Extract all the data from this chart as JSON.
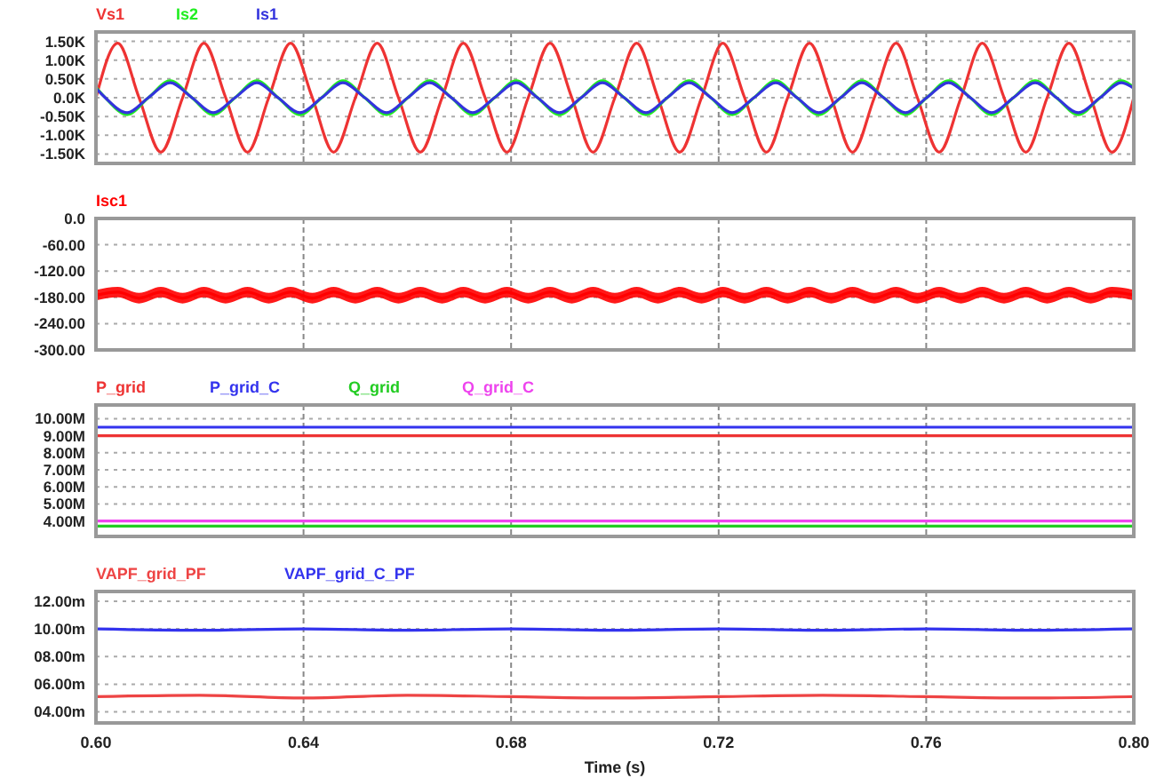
{
  "chart_data": [
    {
      "type": "line",
      "legend": "top",
      "grid": true,
      "tick_labels": "y",
      "xlim": [
        0.6,
        0.8
      ],
      "xticks": [
        {
          "value": 0.6,
          "label": null
        },
        {
          "value": 0.64,
          "label": null
        },
        {
          "value": 0.68,
          "label": null
        },
        {
          "value": 0.72,
          "label": null
        },
        {
          "value": 0.76,
          "label": null
        },
        {
          "value": 0.8,
          "label": null
        }
      ],
      "ylim": [
        -1750,
        1750
      ],
      "yticks": [
        {
          "value": 1500,
          "label": "1.50K"
        },
        {
          "value": 1000,
          "label": "1.00K"
        },
        {
          "value": 500,
          "label": "0.50K"
        },
        {
          "value": 0,
          "label": "0.0K"
        },
        {
          "value": -500,
          "label": "-0.50K"
        },
        {
          "value": -1000,
          "label": "-1.00K"
        },
        {
          "value": -1500,
          "label": "-1.50K"
        }
      ],
      "series": [
        {
          "name": "Vs1",
          "color": "#ee3333",
          "x": [
            0.6,
            0.6042,
            0.6083,
            0.6125,
            0.6167,
            0.6208,
            0.625,
            0.6292,
            0.6333,
            0.6375,
            0.6417,
            0.6458,
            0.65,
            0.6542,
            0.6583,
            0.6625,
            0.6667,
            0.6708,
            0.675,
            0.6792,
            0.6833,
            0.6875,
            0.6917,
            0.6958,
            0.7,
            0.7042,
            0.7083,
            0.7125,
            0.7167,
            0.7208,
            0.725,
            0.7292,
            0.7333,
            0.7375,
            0.7417,
            0.7458,
            0.75,
            0.7542,
            0.7583,
            0.7625,
            0.7667,
            0.7708,
            0.775,
            0.7792,
            0.7833,
            0.7875,
            0.7917,
            0.7958,
            0.8
          ],
          "values": [
            0,
            1450,
            0,
            -1450,
            0,
            1450,
            0,
            -1450,
            0,
            1450,
            0,
            -1450,
            0,
            1450,
            0,
            -1450,
            0,
            1450,
            0,
            -1450,
            0,
            1450,
            0,
            -1450,
            0,
            1450,
            0,
            -1450,
            0,
            1450,
            0,
            -1450,
            0,
            1450,
            0,
            -1450,
            0,
            1450,
            0,
            -1450,
            0,
            1450,
            0,
            -1450,
            0,
            1450,
            0,
            -1450,
            0
          ]
        },
        {
          "name": "Is2",
          "color": "#22ee22",
          "x": [
            0.6,
            0.6018,
            0.606,
            0.6101,
            0.6143,
            0.6185,
            0.6226,
            0.6268,
            0.631,
            0.6351,
            0.6393,
            0.6435,
            0.6476,
            0.6518,
            0.656,
            0.6601,
            0.6643,
            0.6685,
            0.6726,
            0.6768,
            0.681,
            0.6851,
            0.6893,
            0.6935,
            0.6976,
            0.7018,
            0.706,
            0.7101,
            0.7143,
            0.7185,
            0.7226,
            0.7268,
            0.731,
            0.7351,
            0.7393,
            0.7435,
            0.7476,
            0.7518,
            0.756,
            0.7601,
            0.7643,
            0.7685,
            0.7726,
            0.7768,
            0.781,
            0.7851,
            0.7893,
            0.7935,
            0.7976,
            0.8
          ],
          "values": [
            280,
            0,
            -450,
            0,
            450,
            0,
            -450,
            0,
            450,
            0,
            -450,
            0,
            450,
            0,
            -450,
            0,
            450,
            0,
            -450,
            0,
            450,
            0,
            -450,
            0,
            450,
            0,
            -450,
            0,
            450,
            0,
            -450,
            0,
            450,
            0,
            -450,
            0,
            450,
            0,
            -450,
            0,
            450,
            0,
            -450,
            0,
            450,
            0,
            -450,
            0,
            450,
            280
          ]
        },
        {
          "name": "Is1",
          "color": "#3333dd",
          "x": [
            0.6,
            0.6018,
            0.606,
            0.6101,
            0.6143,
            0.6185,
            0.6226,
            0.6268,
            0.631,
            0.6351,
            0.6393,
            0.6435,
            0.6476,
            0.6518,
            0.656,
            0.6601,
            0.6643,
            0.6685,
            0.6726,
            0.6768,
            0.681,
            0.6851,
            0.6893,
            0.6935,
            0.6976,
            0.7018,
            0.706,
            0.7101,
            0.7143,
            0.7185,
            0.7226,
            0.7268,
            0.731,
            0.7351,
            0.7393,
            0.7435,
            0.7476,
            0.7518,
            0.756,
            0.7601,
            0.7643,
            0.7685,
            0.7726,
            0.7768,
            0.781,
            0.7851,
            0.7893,
            0.7935,
            0.7976,
            0.8
          ],
          "values": [
            250,
            0,
            -400,
            0,
            400,
            0,
            -400,
            0,
            400,
            0,
            -400,
            0,
            400,
            0,
            -400,
            0,
            400,
            0,
            -400,
            0,
            400,
            0,
            -400,
            0,
            400,
            0,
            -400,
            0,
            400,
            0,
            -400,
            0,
            400,
            0,
            -400,
            0,
            400,
            0,
            -400,
            0,
            400,
            0,
            -400,
            0,
            400,
            0,
            -400,
            0,
            400,
            250
          ]
        }
      ]
    },
    {
      "type": "line",
      "legend": "top",
      "grid": true,
      "tick_labels": "y",
      "xlim": [
        0.6,
        0.8
      ],
      "xticks": [
        {
          "value": 0.6,
          "label": null
        },
        {
          "value": 0.64,
          "label": null
        },
        {
          "value": 0.68,
          "label": null
        },
        {
          "value": 0.72,
          "label": null
        },
        {
          "value": 0.76,
          "label": null
        },
        {
          "value": 0.8,
          "label": null
        }
      ],
      "ylim": [
        -300,
        0
      ],
      "yticks": [
        {
          "value": 0,
          "label": "0.0"
        },
        {
          "value": -60,
          "label": "-60.00"
        },
        {
          "value": -120,
          "label": "-120.00"
        },
        {
          "value": -180,
          "label": "-180.00"
        },
        {
          "value": -240,
          "label": "-240.00"
        },
        {
          "value": -300,
          "label": "-300.00"
        }
      ],
      "series": [
        {
          "name": "Isc1",
          "color": "#ff0000",
          "x": [
            0.6,
            0.6042,
            0.6083,
            0.6125,
            0.6167,
            0.6208,
            0.625,
            0.6292,
            0.6333,
            0.6375,
            0.6417,
            0.6458,
            0.65,
            0.6542,
            0.6583,
            0.6625,
            0.6667,
            0.6708,
            0.675,
            0.6792,
            0.6833,
            0.6875,
            0.6917,
            0.6958,
            0.7,
            0.7042,
            0.7083,
            0.7125,
            0.7167,
            0.7208,
            0.725,
            0.7292,
            0.7333,
            0.7375,
            0.7417,
            0.7458,
            0.75,
            0.7542,
            0.7583,
            0.7625,
            0.7667,
            0.7708,
            0.775,
            0.7792,
            0.7833,
            0.7875,
            0.7917,
            0.7958,
            0.8
          ],
          "values": [
            -175,
            -168,
            -182,
            -168,
            -182,
            -168,
            -182,
            -168,
            -182,
            -168,
            -182,
            -168,
            -182,
            -168,
            -182,
            -168,
            -182,
            -168,
            -182,
            -168,
            -182,
            -168,
            -182,
            -168,
            -182,
            -168,
            -182,
            -168,
            -182,
            -168,
            -182,
            -168,
            -182,
            -168,
            -182,
            -168,
            -182,
            -168,
            -182,
            -168,
            -182,
            -168,
            -182,
            -168,
            -182,
            -168,
            -182,
            -168,
            -175
          ],
          "lower": [
            -187,
            -180,
            -194,
            -180,
            -194,
            -180,
            -194,
            -180,
            -194,
            -180,
            -194,
            -180,
            -194,
            -180,
            -194,
            -180,
            -194,
            -180,
            -194,
            -180,
            -194,
            -180,
            -194,
            -180,
            -194,
            -180,
            -194,
            -180,
            -194,
            -180,
            -194,
            -180,
            -194,
            -180,
            -194,
            -180,
            -194,
            -180,
            -194,
            -180,
            -194,
            -180,
            -194,
            -180,
            -194,
            -180,
            -194,
            -180,
            -187
          ],
          "upper": [
            -163,
            -156,
            -170,
            -156,
            -170,
            -156,
            -170,
            -156,
            -170,
            -156,
            -170,
            -156,
            -170,
            -156,
            -170,
            -156,
            -170,
            -156,
            -170,
            -156,
            -170,
            -156,
            -170,
            -156,
            -170,
            -156,
            -170,
            -156,
            -170,
            -156,
            -170,
            -156,
            -170,
            -156,
            -170,
            -156,
            -170,
            -156,
            -170,
            -156,
            -170,
            -156,
            -170,
            -156,
            -170,
            -156,
            -170,
            -156,
            -163
          ]
        }
      ]
    },
    {
      "type": "line",
      "legend": "top",
      "grid": true,
      "tick_labels": "y",
      "xlim": [
        0.6,
        0.8
      ],
      "xticks": [
        {
          "value": 0.6,
          "label": null
        },
        {
          "value": 0.64,
          "label": null
        },
        {
          "value": 0.68,
          "label": null
        },
        {
          "value": 0.72,
          "label": null
        },
        {
          "value": 0.76,
          "label": null
        },
        {
          "value": 0.8,
          "label": null
        }
      ],
      "ylim": [
        3100000,
        10800000
      ],
      "yticks": [
        {
          "value": 10000000,
          "label": "10.00M"
        },
        {
          "value": 9000000,
          "label": "9.00M"
        },
        {
          "value": 8000000,
          "label": "8.00M"
        },
        {
          "value": 7000000,
          "label": "7.00M"
        },
        {
          "value": 6000000,
          "label": "6.00M"
        },
        {
          "value": 5000000,
          "label": "5.00M"
        },
        {
          "value": 4000000,
          "label": "4.00M"
        }
      ],
      "series": [
        {
          "name": "P_grid",
          "color": "#ee3333",
          "x": [
            0.6,
            0.8
          ],
          "values": [
            9000000,
            9000000
          ]
        },
        {
          "name": "P_grid_C",
          "color": "#3333ee",
          "x": [
            0.6,
            0.8
          ],
          "values": [
            9500000,
            9500000
          ]
        },
        {
          "name": "Q_grid",
          "color": "#22cc22",
          "x": [
            0.6,
            0.8
          ],
          "values": [
            3700000,
            3700000
          ]
        },
        {
          "name": "Q_grid_C",
          "color": "#ee44ee",
          "x": [
            0.6,
            0.8
          ],
          "values": [
            4000000,
            4000000
          ]
        }
      ]
    },
    {
      "type": "line",
      "legend": "top",
      "grid": true,
      "xlabel": "Time (s)",
      "xlim": [
        0.6,
        0.8
      ],
      "xticks": [
        {
          "value": 0.6,
          "label": "0.60"
        },
        {
          "value": 0.64,
          "label": "0.64"
        },
        {
          "value": 0.68,
          "label": "0.68"
        },
        {
          "value": 0.72,
          "label": "0.72"
        },
        {
          "value": 0.76,
          "label": "0.76"
        },
        {
          "value": 0.8,
          "label": "0.80"
        }
      ],
      "ylim": [
        3.2,
        12.7
      ],
      "yticks": [
        {
          "value": 12,
          "label": "12.00m"
        },
        {
          "value": 10,
          "label": "10.00m"
        },
        {
          "value": 8,
          "label": "08.00m"
        },
        {
          "value": 6,
          "label": "06.00m"
        },
        {
          "value": 4,
          "label": "04.00m"
        }
      ],
      "series": [
        {
          "name": "VAPF_grid_PF",
          "color": "#ee4444",
          "x": [
            0.6,
            0.62,
            0.64,
            0.66,
            0.68,
            0.7,
            0.72,
            0.74,
            0.76,
            0.78,
            0.8
          ],
          "values": [
            5.1,
            5.2,
            5,
            5.2,
            5.1,
            5,
            5.1,
            5.2,
            5.1,
            5,
            5.1
          ]
        },
        {
          "name": "VAPF_grid_C_PF",
          "color": "#3333ee",
          "x": [
            0.6,
            0.62,
            0.64,
            0.66,
            0.68,
            0.7,
            0.72,
            0.74,
            0.76,
            0.78,
            0.8
          ],
          "values": [
            10,
            9.9,
            10,
            9.9,
            10,
            9.9,
            10,
            9.9,
            10,
            9.9,
            10
          ]
        }
      ]
    }
  ]
}
